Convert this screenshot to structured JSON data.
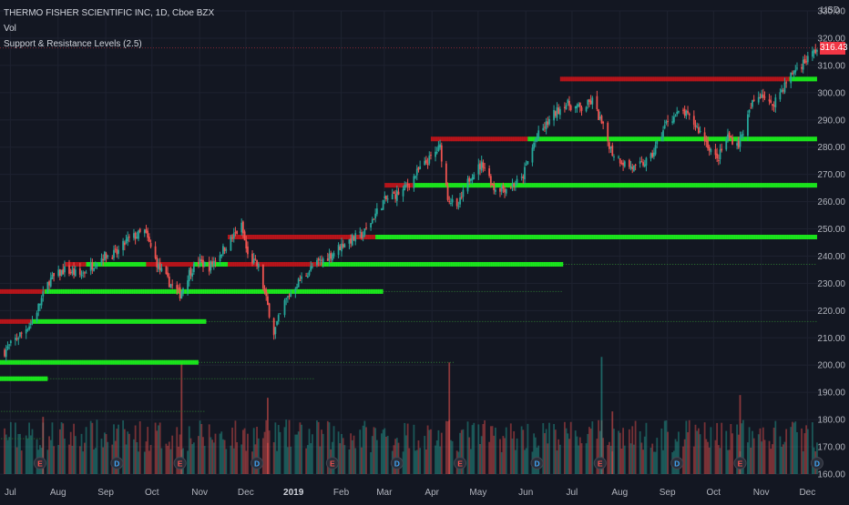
{
  "header": {
    "symbol_line": "THERMO FISHER SCIENTIFIC INC, 1D, Cboe BZX",
    "volume_label": "Vol",
    "indicator_label": "Support & Resistance Levels (2.5)"
  },
  "currency": "USD",
  "last_price": "316.43",
  "colors": {
    "background": "#131722",
    "up": "#26a69a",
    "down": "#ef5350",
    "resistance": "#c2151a",
    "support": "#1cf21c",
    "support_dim": "#2e7d32",
    "grid": "#1e2230",
    "price_tag": "#f23645"
  },
  "chart_data": {
    "type": "candlestick",
    "title": "THERMO FISHER SCIENTIFIC INC, 1D, Cboe BZX",
    "x_ticks": [
      "Jul",
      "Aug",
      "Sep",
      "Oct",
      "Nov",
      "Dec",
      "2019",
      "Feb",
      "Mar",
      "Apr",
      "May",
      "Jun",
      "Jul",
      "Aug",
      "Sep",
      "Oct",
      "Nov",
      "Dec"
    ],
    "y_ticks": [
      "330.00",
      "320.00",
      "310.00",
      "300.00",
      "290.00",
      "280.00",
      "270.00",
      "260.00",
      "250.00",
      "240.00",
      "230.00",
      "220.00",
      "210.00",
      "200.00",
      "190.00",
      "180.00",
      "170.00",
      "160.00"
    ],
    "ylim": [
      160,
      330
    ],
    "x_range": [
      "2018-07-01",
      "2019-12-12"
    ],
    "close_waypoints": [
      [
        "2018-07-02",
        205
      ],
      [
        "2018-07-10",
        210
      ],
      [
        "2018-07-20",
        216
      ],
      [
        "2018-07-31",
        231
      ],
      [
        "2018-08-10",
        235
      ],
      [
        "2018-08-20",
        233
      ],
      [
        "2018-09-04",
        240
      ],
      [
        "2018-09-13",
        241
      ],
      [
        "2018-09-20",
        246
      ],
      [
        "2018-10-01",
        249
      ],
      [
        "2018-10-05",
        243
      ],
      [
        "2018-10-10",
        236
      ],
      [
        "2018-10-16",
        231
      ],
      [
        "2018-10-24",
        226
      ],
      [
        "2018-10-30",
        234
      ],
      [
        "2018-11-05",
        238
      ],
      [
        "2018-11-12",
        236
      ],
      [
        "2018-11-26",
        246
      ],
      [
        "2018-12-03",
        251
      ],
      [
        "2018-12-07",
        240
      ],
      [
        "2018-12-14",
        236
      ],
      [
        "2018-12-19",
        224
      ],
      [
        "2018-12-24",
        212
      ],
      [
        "2018-12-31",
        223
      ],
      [
        "2019-01-08",
        230
      ],
      [
        "2019-01-18",
        236
      ],
      [
        "2019-01-31",
        241
      ],
      [
        "2019-02-08",
        245
      ],
      [
        "2019-02-20",
        248
      ],
      [
        "2019-03-05",
        260
      ],
      [
        "2019-03-11",
        262
      ],
      [
        "2019-03-18",
        264
      ],
      [
        "2019-03-29",
        272
      ],
      [
        "2019-04-05",
        276
      ],
      [
        "2019-04-11",
        280
      ],
      [
        "2019-04-16",
        262
      ],
      [
        "2019-04-22",
        257
      ],
      [
        "2019-05-01",
        270
      ],
      [
        "2019-05-09",
        274
      ],
      [
        "2019-05-16",
        265
      ],
      [
        "2019-05-24",
        265
      ],
      [
        "2019-06-03",
        268
      ],
      [
        "2019-06-12",
        283
      ],
      [
        "2019-06-24",
        292
      ],
      [
        "2019-07-01",
        296
      ],
      [
        "2019-07-12",
        294
      ],
      [
        "2019-07-19",
        297
      ],
      [
        "2019-07-26",
        287
      ],
      [
        "2019-08-01",
        278
      ],
      [
        "2019-08-09",
        274
      ],
      [
        "2019-08-16",
        272
      ],
      [
        "2019-08-26",
        276
      ],
      [
        "2019-09-06",
        290
      ],
      [
        "2019-09-16",
        293
      ],
      [
        "2019-09-24",
        288
      ],
      [
        "2019-10-01",
        282
      ],
      [
        "2019-10-08",
        275
      ],
      [
        "2019-10-15",
        284
      ],
      [
        "2019-10-22",
        281
      ],
      [
        "2019-10-31",
        296
      ],
      [
        "2019-11-06",
        300
      ],
      [
        "2019-11-12",
        295
      ],
      [
        "2019-11-20",
        302
      ],
      [
        "2019-11-27",
        308
      ],
      [
        "2019-12-05",
        312
      ],
      [
        "2019-12-12",
        316
      ]
    ],
    "levels": [
      {
        "role": "resistance",
        "price": 216,
        "from": "2018-06-28",
        "to": "2018-07-20",
        "dotted_to": "2018-07-20"
      },
      {
        "role": "support",
        "price": 216,
        "from": "2018-07-20",
        "to": "2018-11-10",
        "dotted_to": "2019-12-12"
      },
      {
        "role": "resistance",
        "price": 227,
        "from": "2018-06-28",
        "to": "2018-07-28",
        "dotted_to": "2018-07-28"
      },
      {
        "role": "support",
        "price": 227,
        "from": "2018-07-28",
        "to": "2019-03-05",
        "dotted_to": "2019-06-30"
      },
      {
        "role": "resistance",
        "price": 237,
        "from": "2018-08-10",
        "to": "2018-08-24",
        "dotted_to": "2018-08-24"
      },
      {
        "role": "support",
        "price": 237,
        "from": "2018-08-24",
        "to": "2018-10-02",
        "dotted_to": "2018-10-02"
      },
      {
        "role": "resistance",
        "price": 237,
        "from": "2018-10-02",
        "to": "2018-11-02",
        "dotted_to": "2018-11-02"
      },
      {
        "role": "support",
        "price": 237,
        "from": "2018-11-02",
        "to": "2018-11-24",
        "dotted_to": "2018-11-24"
      },
      {
        "role": "resistance",
        "price": 237,
        "from": "2018-11-24",
        "to": "2019-01-24",
        "dotted_to": "2019-01-24"
      },
      {
        "role": "support",
        "price": 237,
        "from": "2019-01-24",
        "to": "2019-06-30",
        "dotted_to": "2019-12-12"
      },
      {
        "role": "resistance",
        "price": 247,
        "from": "2018-11-24",
        "to": "2019-02-28",
        "dotted_to": "2019-02-28"
      },
      {
        "role": "support",
        "price": 247,
        "from": "2019-02-28",
        "to": "2019-12-12",
        "dotted_to": "2019-12-12"
      },
      {
        "role": "resistance",
        "price": 266,
        "from": "2019-03-06",
        "to": "2019-03-25",
        "dotted_to": "2019-03-25"
      },
      {
        "role": "support",
        "price": 266,
        "from": "2019-03-25",
        "to": "2019-12-12",
        "dotted_to": "2019-12-12"
      },
      {
        "role": "resistance",
        "price": 283,
        "from": "2019-04-05",
        "to": "2019-06-07",
        "dotted_to": "2019-06-07"
      },
      {
        "role": "support",
        "price": 283,
        "from": "2019-06-07",
        "to": "2019-12-12",
        "dotted_to": "2019-12-12"
      },
      {
        "role": "resistance",
        "price": 305,
        "from": "2019-06-28",
        "to": "2019-11-24",
        "dotted_to": "2019-11-24"
      },
      {
        "role": "support",
        "price": 305,
        "from": "2019-11-24",
        "to": "2019-12-12",
        "dotted_to": "2019-12-12"
      },
      {
        "role": "support",
        "price": 201,
        "from": "2018-06-28",
        "to": "2018-11-05",
        "dotted_to": "2019-04-20"
      },
      {
        "role": "support",
        "price": 195,
        "from": "2018-06-28",
        "to": "2018-07-30",
        "dotted_to": "2019-01-20"
      },
      {
        "role": "support",
        "price": 183,
        "from": "2018-06-28",
        "to": "2018-06-28",
        "dotted_to": "2018-11-10"
      },
      {
        "role": "support",
        "price": 173,
        "from": "2018-06-28",
        "to": "2018-06-28",
        "dotted_to": "2018-07-28"
      }
    ],
    "volume": {
      "typical_range": [
        168,
        180
      ],
      "spikes": [
        {
          "date": "2018-10-25",
          "level": 201
        },
        {
          "date": "2018-12-20",
          "level": 188
        },
        {
          "date": "2019-04-17",
          "level": 201
        },
        {
          "date": "2019-07-25",
          "level": 203
        },
        {
          "date": "2019-10-23",
          "level": 189
        },
        {
          "date": "2019-08-01",
          "level": 183
        },
        {
          "date": "2018-07-27",
          "level": 181
        }
      ]
    },
    "events": [
      {
        "date": "2018-07-25",
        "label": "E"
      },
      {
        "date": "2018-09-13",
        "label": "D"
      },
      {
        "date": "2018-10-24",
        "label": "E"
      },
      {
        "date": "2018-12-13",
        "label": "D"
      },
      {
        "date": "2019-01-31",
        "label": "E"
      },
      {
        "date": "2019-03-14",
        "label": "D"
      },
      {
        "date": "2019-04-24",
        "label": "E"
      },
      {
        "date": "2019-06-13",
        "label": "D"
      },
      {
        "date": "2019-07-24",
        "label": "E"
      },
      {
        "date": "2019-09-12",
        "label": "D"
      },
      {
        "date": "2019-10-23",
        "label": "E"
      },
      {
        "date": "2019-12-12",
        "label": "D"
      }
    ]
  }
}
